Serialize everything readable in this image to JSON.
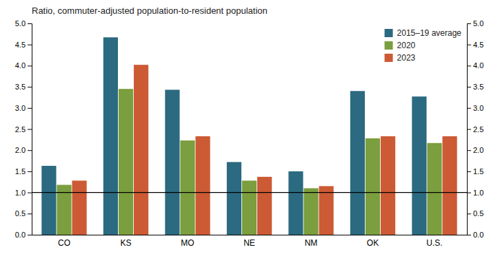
{
  "chart_data": {
    "type": "bar",
    "title": "Ratio, commuter-adjusted population-to-resident population",
    "categories": [
      "CO",
      "KS",
      "MO",
      "NE",
      "NM",
      "OK",
      "U.S."
    ],
    "series": [
      {
        "name": "2015–19 average",
        "color": "#2B6A80",
        "values": [
          1.63,
          4.67,
          3.43,
          1.72,
          1.5,
          3.4,
          3.27
        ]
      },
      {
        "name": "2020",
        "color": "#7B9E3E",
        "values": [
          1.18,
          3.45,
          2.23,
          1.28,
          1.1,
          2.28,
          2.17
        ]
      },
      {
        "name": "2023",
        "color": "#CC5A35",
        "values": [
          1.28,
          4.02,
          2.33,
          1.37,
          1.15,
          2.33,
          2.33
        ]
      }
    ],
    "ylim": [
      0,
      5
    ],
    "yticks": [
      {
        "value": 0,
        "label": "0.0"
      },
      0.5,
      {
        "value": 1,
        "label": "1.0"
      },
      1.5,
      {
        "value": 2,
        "label": "2.0"
      },
      2.5,
      {
        "value": 3,
        "label": "3.0"
      },
      3.5,
      {
        "value": 4,
        "label": "4.0"
      },
      4.5,
      {
        "value": 5,
        "label": "5.0"
      }
    ],
    "y2lim": [
      0,
      5
    ],
    "y2ticks": [
      {
        "value": 0,
        "label": "0.0"
      },
      0.5,
      {
        "value": 1,
        "label": "1.0"
      },
      1.5,
      {
        "value": 2,
        "label": "2.0"
      },
      2.5,
      {
        "value": 3,
        "label": "3.0"
      },
      3.5,
      {
        "value": 4,
        "label": "4.0"
      },
      4.5,
      {
        "value": 5,
        "label": "5.0"
      }
    ],
    "hline": 1,
    "grid": false,
    "legend": "upper right"
  }
}
